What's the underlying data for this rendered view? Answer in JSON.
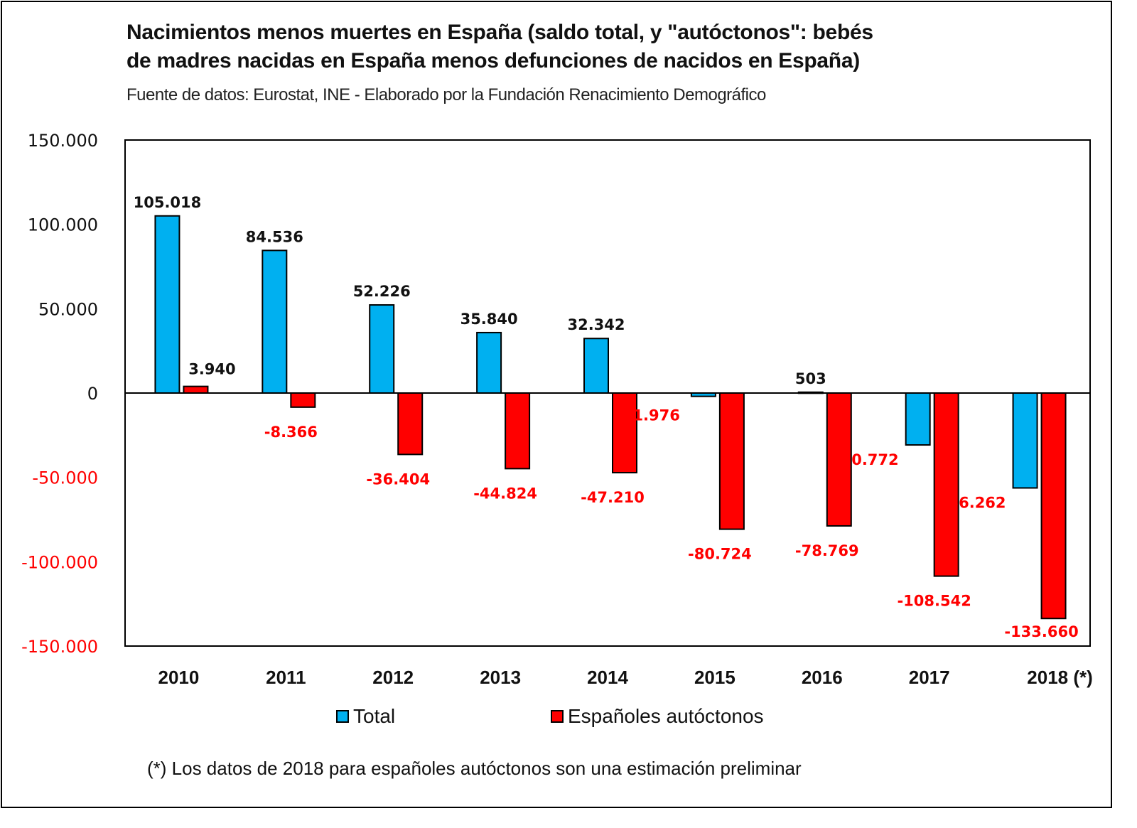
{
  "title_line1": "Nacimientos menos muertes en España (saldo total, y \"autóctonos\": bebés",
  "title_line2": "de madres nacidas en España menos defunciones de nacidos en España)",
  "subtitle": "Fuente de datos: Eurostat, INE -  Elaborado por la Fundación Renacimiento Demográfico",
  "footnote": "(*) Los datos de 2018 para españoles autóctonos son una estimación preliminar",
  "colors": {
    "total": "#00B0F0",
    "autoctonos": "#FF0000",
    "positive_text": "#111111",
    "negative_text": "#FF0000"
  },
  "chart_data": {
    "type": "bar",
    "title": "Nacimientos menos muertes en España (saldo total, y \"autóctonos\": bebés de madres nacidas en España menos defunciones de nacidos en España)",
    "subtitle": "Fuente de datos: Eurostat, INE -  Elaborado por la Fundación Renacimiento Demográfico",
    "xlabel": "",
    "ylabel": "",
    "categories": [
      "2010",
      "2011",
      "2012",
      "2013",
      "2014",
      "2015",
      "2016",
      "2017",
      "2018 (*)"
    ],
    "series": [
      {
        "name": "Total",
        "values": [
          105018,
          84536,
          52226,
          35840,
          32342,
          -1976,
          503,
          -30772,
          -56262
        ],
        "labels": [
          "105.018",
          "84.536",
          "52.226",
          "35.840",
          "32.342",
          "-1.976",
          "503",
          "-30.772",
          "-56.262"
        ]
      },
      {
        "name": "Españoles autóctonos",
        "values": [
          3940,
          -8366,
          -36404,
          -44824,
          -47210,
          -80724,
          -78769,
          -108542,
          -133660
        ],
        "labels": [
          "3.940",
          "-8.366",
          "-36.404",
          "-44.824",
          "-47.210",
          "-80.724",
          "-78.769",
          "-108.542",
          "-133.660"
        ]
      }
    ],
    "ylim": [
      -150000,
      150000
    ],
    "yticks": [
      150000,
      100000,
      50000,
      0,
      -50000,
      -100000,
      -150000
    ],
    "ytick_labels": [
      "150.000",
      "100.000",
      "50.000",
      "0",
      "-50.000",
      "-100.000",
      "-150.000"
    ],
    "grid": false,
    "legend": "bottom-center",
    "footnote": "(*) Los datos de 2018 para españoles autóctonos son una estimación preliminar"
  }
}
